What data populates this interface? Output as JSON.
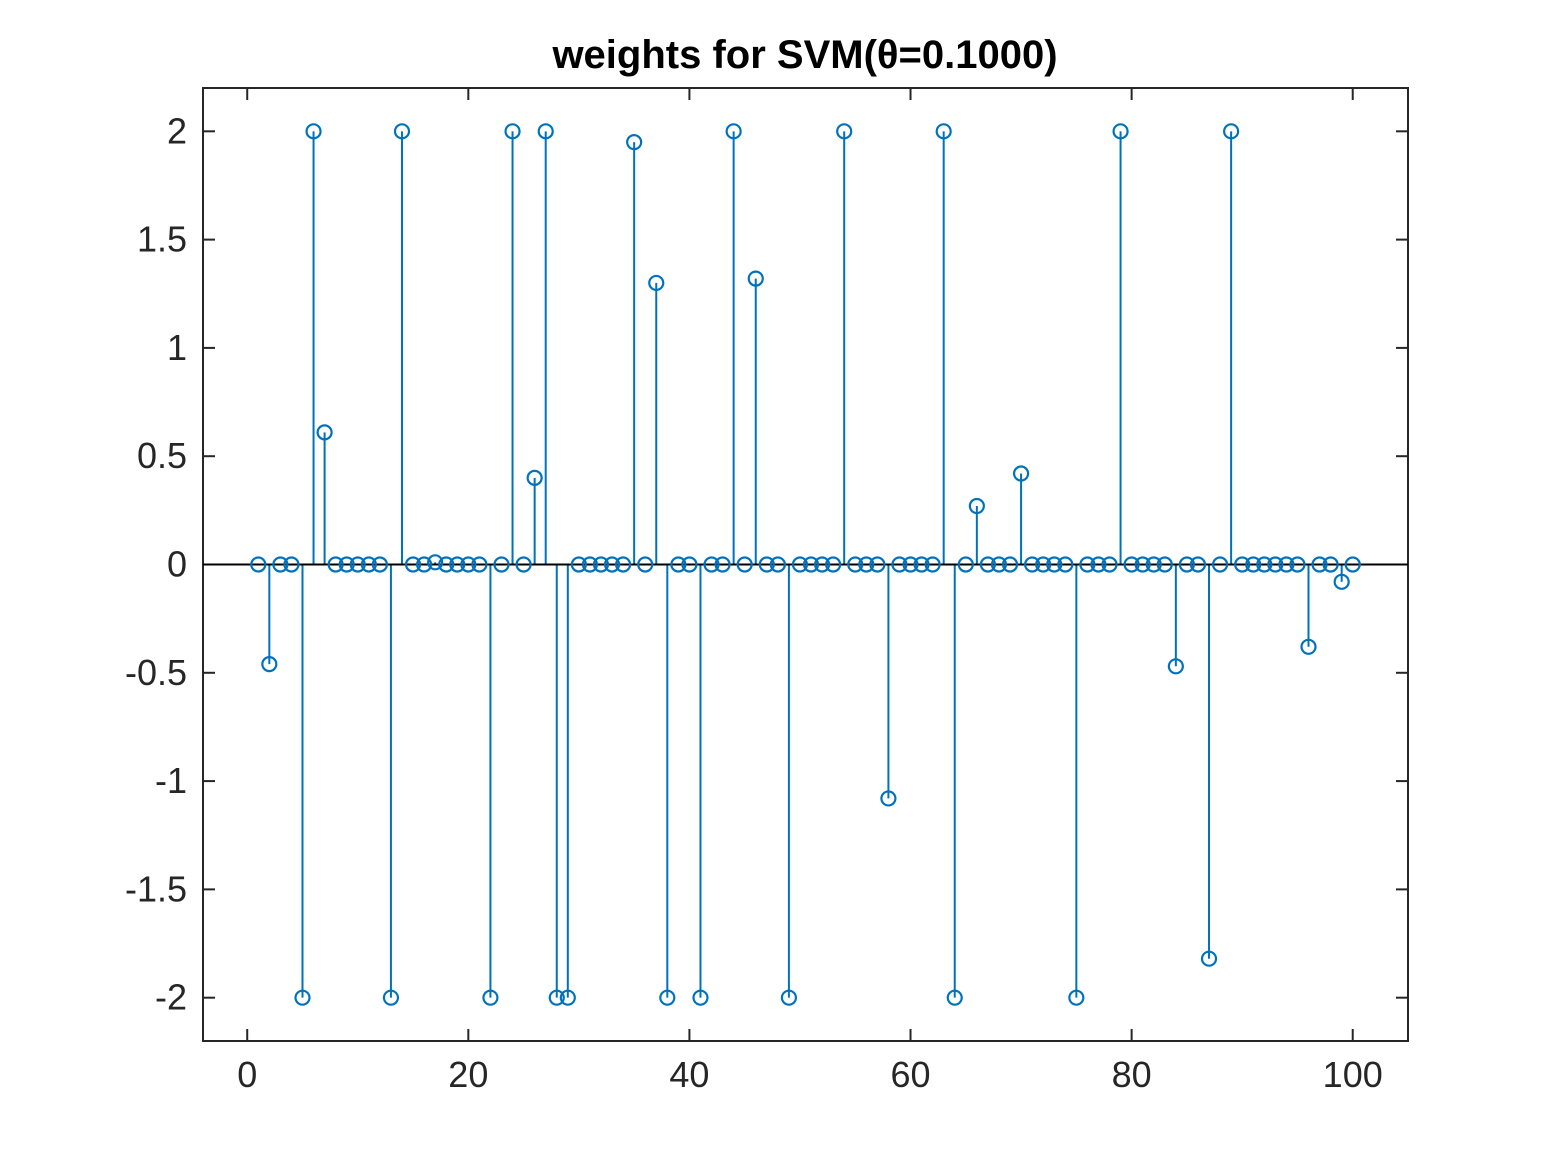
{
  "chart_data": {
    "type": "stem",
    "title": "weights for SVM(θ=0.1000)",
    "xlabel": "",
    "ylabel": "",
    "xlim": [
      -4,
      105
    ],
    "ylim": [
      -2.2,
      2.2
    ],
    "x_ticks": [
      0,
      20,
      40,
      60,
      80,
      100
    ],
    "x_tick_labels": [
      "0",
      "20",
      "40",
      "60",
      "80",
      "100"
    ],
    "y_ticks": [
      2,
      1.5,
      1,
      0.5,
      0,
      -0.5,
      -1,
      -1.5,
      -2
    ],
    "y_tick_labels": [
      "2",
      "1.5",
      "1",
      "0.5",
      "0",
      "-0.5",
      "-1",
      "-1.5",
      "-2"
    ],
    "grid": false,
    "baseline": 0,
    "colors": {
      "series": "#0072bd",
      "axes": "#262626",
      "baseline": "#000000"
    },
    "x": [
      1,
      2,
      3,
      4,
      5,
      6,
      7,
      8,
      9,
      10,
      11,
      12,
      13,
      14,
      15,
      16,
      17,
      18,
      19,
      20,
      21,
      22,
      23,
      24,
      25,
      26,
      27,
      28,
      29,
      30,
      31,
      32,
      33,
      34,
      35,
      36,
      37,
      38,
      39,
      40,
      41,
      42,
      43,
      44,
      45,
      46,
      47,
      48,
      49,
      50,
      51,
      52,
      53,
      54,
      55,
      56,
      57,
      58,
      59,
      60,
      61,
      62,
      63,
      64,
      65,
      66,
      67,
      68,
      69,
      70,
      71,
      72,
      73,
      74,
      75,
      76,
      77,
      78,
      79,
      80,
      81,
      82,
      83,
      84,
      85,
      86,
      87,
      88,
      89,
      90,
      91,
      92,
      93,
      94,
      95,
      96,
      97,
      98,
      99,
      100
    ],
    "values": [
      0,
      -0.46,
      0,
      0,
      -2,
      2,
      0.61,
      0,
      0,
      0,
      0,
      0,
      -2,
      2,
      0,
      0,
      0.01,
      0,
      0,
      0,
      0,
      -2,
      0,
      2,
      0,
      0.4,
      2,
      -2,
      -2,
      0,
      0,
      0,
      0,
      0,
      1.95,
      0,
      1.3,
      -2,
      0,
      0,
      -2,
      0,
      0,
      2,
      0,
      1.32,
      0,
      0,
      -2,
      0,
      0,
      0,
      0,
      2,
      0,
      0,
      0,
      -1.08,
      0,
      0,
      0,
      0,
      2,
      -2,
      0,
      0.27,
      0,
      0,
      0,
      0.42,
      0,
      0,
      0,
      0,
      -2,
      0,
      0,
      0,
      2,
      0,
      0,
      0,
      0,
      -0.47,
      0,
      0,
      -1.82,
      0,
      2,
      0,
      0,
      0,
      0,
      0,
      0,
      -0.38,
      0,
      0,
      -0.08,
      0
    ]
  }
}
